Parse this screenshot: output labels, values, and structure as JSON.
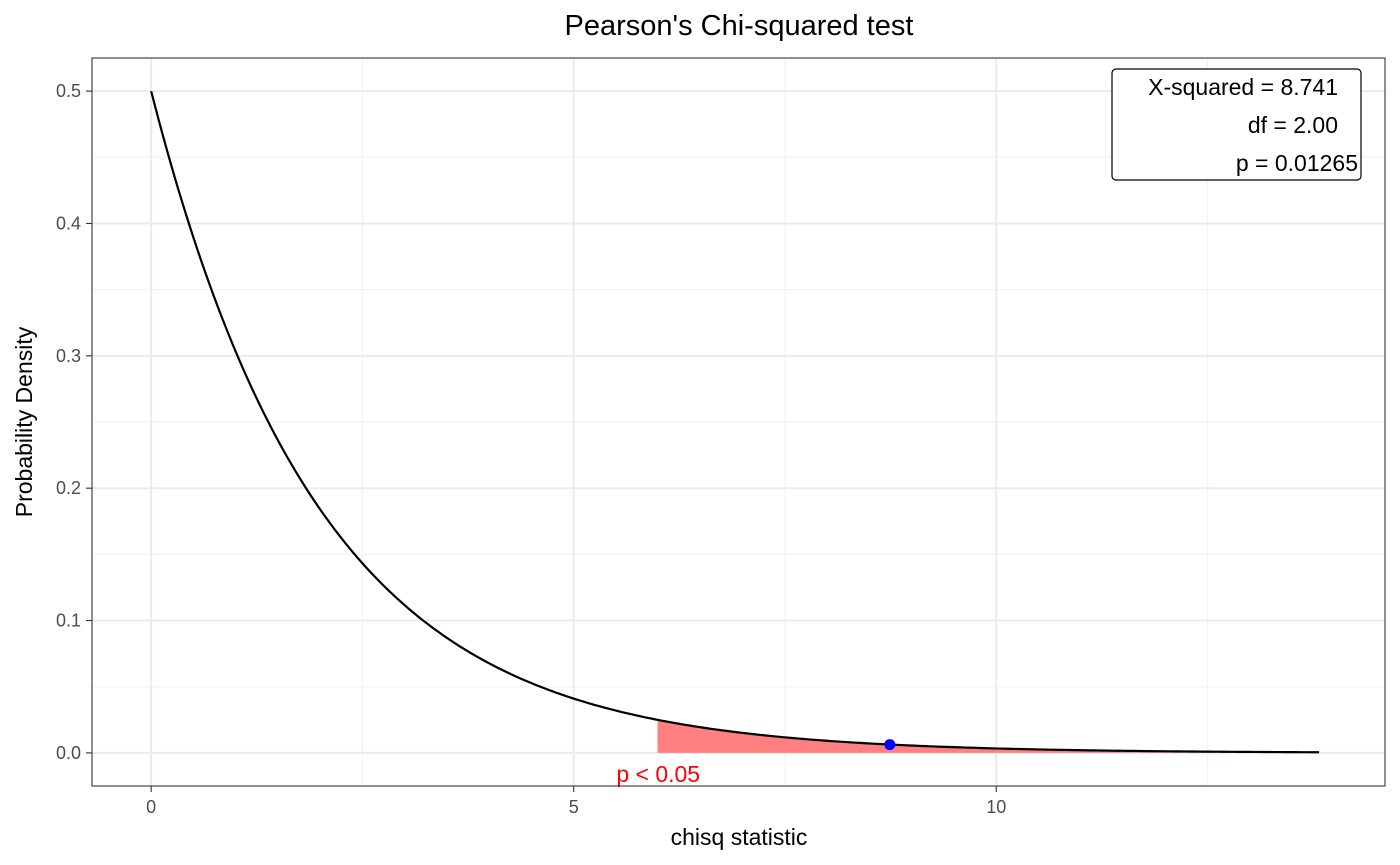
{
  "chart_data": {
    "type": "line",
    "title": "Pearson's Chi-squared test",
    "xlabel": "chisq statistic",
    "ylabel": "Probability Density",
    "xlim": [
      -0.7,
      14.6
    ],
    "ylim": [
      -0.025,
      0.525
    ],
    "x_ticks": [
      0,
      5,
      10
    ],
    "x_tick_labels": [
      "0",
      "5",
      "10"
    ],
    "x_minor_ticks": [
      2.5,
      7.5,
      12.5
    ],
    "y_ticks": [
      0.0,
      0.1,
      0.2,
      0.3,
      0.4,
      0.5
    ],
    "y_tick_labels": [
      "0.0",
      "0.1",
      "0.2",
      "0.3",
      "0.4",
      "0.5"
    ],
    "y_minor_ticks": [
      0.05,
      0.15,
      0.25,
      0.35,
      0.45
    ],
    "grid": true,
    "series": [
      {
        "distribution": "chi-squared",
        "df": 2,
        "x_range": [
          0,
          13.82
        ],
        "color": "#000000"
      }
    ],
    "rejection_region": {
      "x_from": 5.991,
      "x_to": 13.82,
      "color": "#ff8080"
    },
    "observed_point": {
      "x": 8.741,
      "y": 0.0063,
      "color": "#0000ff"
    },
    "annotation": {
      "text": "p < 0.05",
      "x": 6.0,
      "color": "#ff0000"
    },
    "stats_box": {
      "lines": [
        "X-squared = 8.741",
        "df = 2.00",
        "p = 0.01265"
      ],
      "position": "top-right"
    }
  }
}
